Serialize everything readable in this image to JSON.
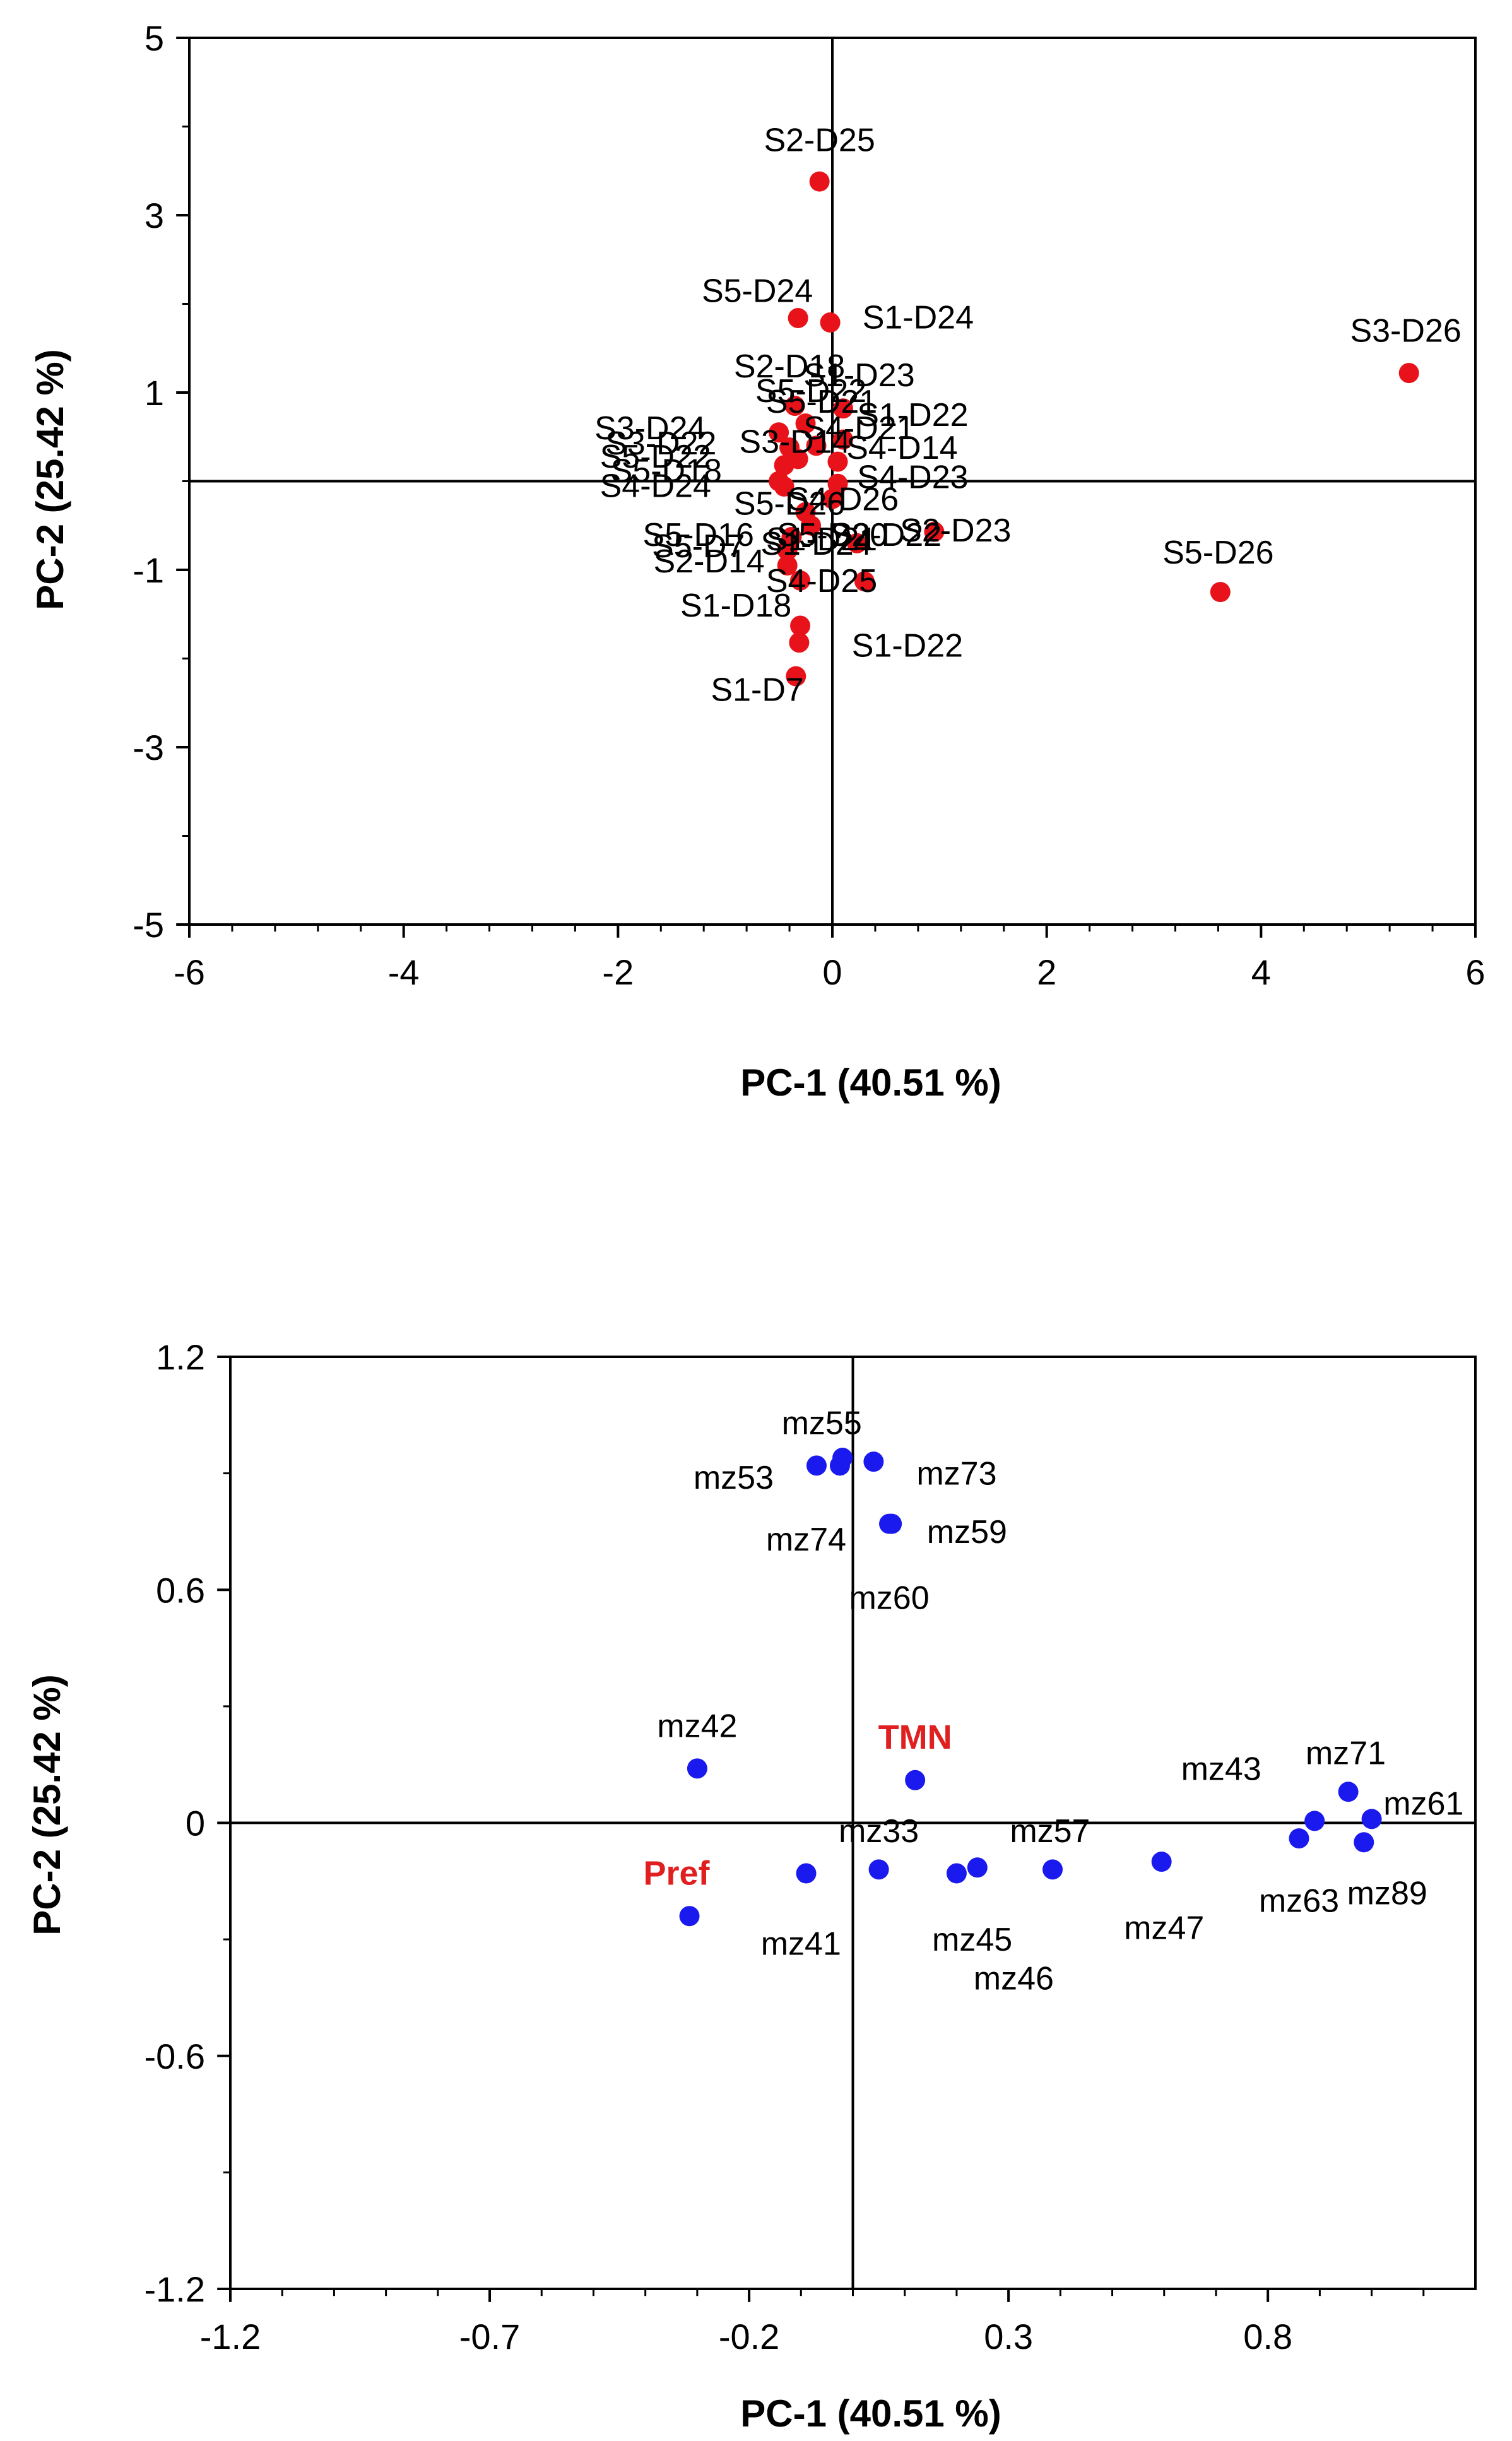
{
  "chart_data": [
    {
      "type": "scatter",
      "title": "",
      "xlabel": "PC-1 (40.51 %)",
      "ylabel": "PC-2 (25.42 %)",
      "xlim": [
        -6,
        6
      ],
      "ylim": [
        -5,
        5
      ],
      "x_ticks": [
        "-6",
        "-4",
        "-2",
        "0",
        "2",
        "4",
        "6"
      ],
      "y_ticks": [
        "5",
        "3",
        "1",
        "-1",
        "-3",
        "-5"
      ],
      "x_tick_values": [
        -6,
        -4,
        -2,
        0,
        2,
        4,
        6
      ],
      "y_tick_values": [
        5,
        3,
        1,
        -1,
        -3,
        -5
      ],
      "grid": false,
      "zero_lines": true,
      "marker_color": "#e8131a",
      "points": [
        {
          "label": "S2-D25",
          "x": -0.12,
          "y": 3.38
        },
        {
          "label": "S5-D24",
          "x": -0.32,
          "y": 1.84
        },
        {
          "label": "S1-D24",
          "x": -0.02,
          "y": 1.79
        },
        {
          "label": "S3-D26",
          "x": 5.38,
          "y": 1.22
        },
        {
          "label": "S5-D26",
          "x": 3.62,
          "y": -1.25
        },
        {
          "label": "S2-D23",
          "x": 0.95,
          "y": -0.57
        },
        {
          "label": "S1-D22",
          "x": 0.3,
          "y": -1.13
        },
        {
          "label": "S4-D25",
          "x": -0.3,
          "y": -1.12
        },
        {
          "label": "S1-D18",
          "x": -0.3,
          "y": -1.63
        },
        {
          "label": "",
          "x": -0.31,
          "y": -1.82
        },
        {
          "label": "S1-D7",
          "x": -0.34,
          "y": -2.2
        },
        {
          "label": "S2-D18",
          "x": -0.35,
          "y": 0.85
        },
        {
          "label": "S3-D23",
          "x": 0.1,
          "y": 0.82
        },
        {
          "label": "S1-D22",
          "x": 0.1,
          "y": 0.47
        },
        {
          "label": "S4-D14",
          "x": 0.05,
          "y": 0.22
        },
        {
          "label": "S4-D23",
          "x": 0.05,
          "y": -0.03
        },
        {
          "label": "S4-D26",
          "x": 0.0,
          "y": -0.2
        },
        {
          "label": "S3-D24",
          "x": -0.5,
          "y": 0.55
        },
        {
          "label": "S3-D22",
          "x": -0.4,
          "y": 0.38
        },
        {
          "label": "S5-D22",
          "x": -0.45,
          "y": 0.18
        },
        {
          "label": "S4-D18",
          "x": -0.5,
          "y": 0.0
        },
        {
          "label": "S4-D24",
          "x": -0.45,
          "y": -0.06
        },
        {
          "label": "S5-D16",
          "x": -0.38,
          "y": -0.63
        },
        {
          "label": "S5-D7",
          "x": -0.42,
          "y": -0.78
        },
        {
          "label": "S2-D14",
          "x": -0.42,
          "y": -0.95
        },
        {
          "label": "",
          "x": 0.23,
          "y": -0.7
        },
        {
          "label": "",
          "x": -0.25,
          "y": 0.65
        },
        {
          "label": "",
          "x": -0.15,
          "y": 0.4
        },
        {
          "label": "",
          "x": -0.32,
          "y": 0.25
        },
        {
          "label": "",
          "x": -0.25,
          "y": -0.35
        },
        {
          "label": "",
          "x": -0.2,
          "y": -0.5
        }
      ],
      "text_labels": [
        {
          "text": "S2-D25",
          "x": -0.12,
          "y": 3.85
        },
        {
          "text": "S5-D24",
          "x": -0.7,
          "y": 2.15
        },
        {
          "text": "S1-D24",
          "x": 0.8,
          "y": 1.85
        },
        {
          "text": "S3-D26",
          "x": 5.35,
          "y": 1.7
        },
        {
          "text": "S5-D26",
          "x": 3.6,
          "y": -0.8
        },
        {
          "text": "S2-D23",
          "x": 1.15,
          "y": -0.55
        },
        {
          "text": "S1-D22",
          "x": 0.7,
          "y": -1.85
        },
        {
          "text": "S4-D25",
          "x": -0.1,
          "y": -1.12
        },
        {
          "text": "S1-D18",
          "x": -0.9,
          "y": -1.4
        },
        {
          "text": "S1-D7",
          "x": -0.7,
          "y": -2.35
        },
        {
          "text": "S2-D18",
          "x": -0.4,
          "y": 1.3
        },
        {
          "text": "S1-D23",
          "x": 0.25,
          "y": 1.2
        },
        {
          "text": "S5-D22",
          "x": -0.2,
          "y": 1.02
        },
        {
          "text": "S5-D21",
          "x": -0.1,
          "y": 0.9
        },
        {
          "text": "S1-D22",
          "x": 0.75,
          "y": 0.75
        },
        {
          "text": "S4-D14",
          "x": 0.65,
          "y": 0.38
        },
        {
          "text": "S4-D23",
          "x": 0.75,
          "y": 0.05
        },
        {
          "text": "S4-D26",
          "x": 0.1,
          "y": -0.2
        },
        {
          "text": "S3-D24",
          "x": -1.7,
          "y": 0.6
        },
        {
          "text": "S3-D22",
          "x": -1.6,
          "y": 0.43
        },
        {
          "text": "S5-D22",
          "x": -1.65,
          "y": 0.28
        },
        {
          "text": "S5-D18",
          "x": -1.55,
          "y": 0.12
        },
        {
          "text": "S4-D24",
          "x": -1.65,
          "y": -0.05
        },
        {
          "text": "S5-D16",
          "x": -1.25,
          "y": -0.6
        },
        {
          "text": "S5-D7",
          "x": -1.25,
          "y": -0.73
        },
        {
          "text": "S2-D14",
          "x": -1.15,
          "y": -0.9
        },
        {
          "text": "S5-D20",
          "x": 0.0,
          "y": -0.6
        },
        {
          "text": "S1-D21",
          "x": -0.1,
          "y": -0.65
        },
        {
          "text": "S2-D22",
          "x": 0.5,
          "y": -0.6
        },
        {
          "text": "S1-D24",
          "x": -0.15,
          "y": -0.7
        },
        {
          "text": "S4-D21",
          "x": 0.25,
          "y": 0.6
        },
        {
          "text": "S3-D14",
          "x": -0.35,
          "y": 0.45
        },
        {
          "text": "S5-D26",
          "x": -0.4,
          "y": -0.25
        }
      ]
    },
    {
      "type": "scatter",
      "title": "",
      "xlabel": "PC-1 (40.51 %)",
      "ylabel": "PC-2 (25.42 %)",
      "xlim": [
        -1.2,
        1.2
      ],
      "ylim": [
        -1.2,
        1.2
      ],
      "x_ticks": [
        "-1.2",
        "-0.7",
        "-0.2",
        "0.3",
        "0.8"
      ],
      "y_ticks": [
        "1.2",
        "0.6",
        "0",
        "-0.6",
        "-1.2"
      ],
      "x_tick_values": [
        -1.2,
        -0.7,
        -0.2,
        0.3,
        0.8
      ],
      "y_tick_values": [
        1.2,
        0.6,
        0,
        -0.6,
        -1.2
      ],
      "grid": false,
      "zero_lines": true,
      "marker_color": "#1a1aee",
      "highlight_color": "#e02020",
      "points": [
        {
          "label": "mz55",
          "x": -0.02,
          "y": 0.94
        },
        {
          "label": "mz53",
          "x": -0.07,
          "y": 0.92
        },
        {
          "label": "",
          "x": -0.025,
          "y": 0.92
        },
        {
          "label": "mz73",
          "x": 0.04,
          "y": 0.93
        },
        {
          "label": "mz59",
          "x": 0.07,
          "y": 0.77
        },
        {
          "label": "mz74",
          "x": 0.075,
          "y": 0.77
        },
        {
          "label": "mz42",
          "x": -0.3,
          "y": 0.14
        },
        {
          "label": "TMN",
          "x": 0.12,
          "y": 0.11
        },
        {
          "label": "mz41",
          "x": -0.09,
          "y": -0.13
        },
        {
          "label": "mz33",
          "x": 0.05,
          "y": -0.12
        },
        {
          "label": "mz45",
          "x": 0.2,
          "y": -0.13
        },
        {
          "label": "mz46",
          "x": 0.24,
          "y": -0.115
        },
        {
          "label": "mz57",
          "x": 0.385,
          "y": -0.12
        },
        {
          "label": "mz47",
          "x": 0.595,
          "y": -0.1
        },
        {
          "label": "mz71",
          "x": 0.955,
          "y": 0.08
        },
        {
          "label": "mz61",
          "x": 1.0,
          "y": 0.01
        },
        {
          "label": "",
          "x": 0.89,
          "y": 0.005
        },
        {
          "label": "mz63",
          "x": 0.86,
          "y": -0.04
        },
        {
          "label": "mz89",
          "x": 0.985,
          "y": -0.05
        },
        {
          "label": "Pref",
          "x": -0.315,
          "y": -0.24
        }
      ],
      "text_labels": [
        {
          "text": "mz55",
          "x": -0.06,
          "y": 1.03,
          "red": false
        },
        {
          "text": "mz53",
          "x": -0.23,
          "y": 0.89,
          "red": false
        },
        {
          "text": "mz73",
          "x": 0.2,
          "y": 0.9,
          "red": false
        },
        {
          "text": "mz74",
          "x": -0.09,
          "y": 0.73,
          "red": false
        },
        {
          "text": "mz59",
          "x": 0.22,
          "y": 0.75,
          "red": false
        },
        {
          "text": "mz60",
          "x": 0.07,
          "y": 0.58,
          "red": false
        },
        {
          "text": "mz42",
          "x": -0.3,
          "y": 0.25,
          "red": false
        },
        {
          "text": "TMN",
          "x": 0.12,
          "y": 0.22,
          "red": true
        },
        {
          "text": "mz33",
          "x": 0.05,
          "y": -0.02,
          "red": false
        },
        {
          "text": "mz57",
          "x": 0.38,
          "y": -0.02,
          "red": false
        },
        {
          "text": "mz43",
          "x": 0.71,
          "y": 0.14,
          "red": false
        },
        {
          "text": "mz71",
          "x": 0.95,
          "y": 0.18,
          "red": false
        },
        {
          "text": "mz61",
          "x": 1.1,
          "y": 0.05,
          "red": false
        },
        {
          "text": "Pref",
          "x": -0.34,
          "y": -0.13,
          "red": true
        },
        {
          "text": "mz41",
          "x": -0.1,
          "y": -0.31,
          "red": false
        },
        {
          "text": "mz45",
          "x": 0.23,
          "y": -0.3,
          "red": false
        },
        {
          "text": "mz46",
          "x": 0.31,
          "y": -0.4,
          "red": false
        },
        {
          "text": "mz47",
          "x": 0.6,
          "y": -0.27,
          "red": false
        },
        {
          "text": "mz63",
          "x": 0.86,
          "y": -0.2,
          "red": false
        },
        {
          "text": "mz89",
          "x": 1.03,
          "y": -0.18,
          "red": false
        }
      ]
    }
  ]
}
